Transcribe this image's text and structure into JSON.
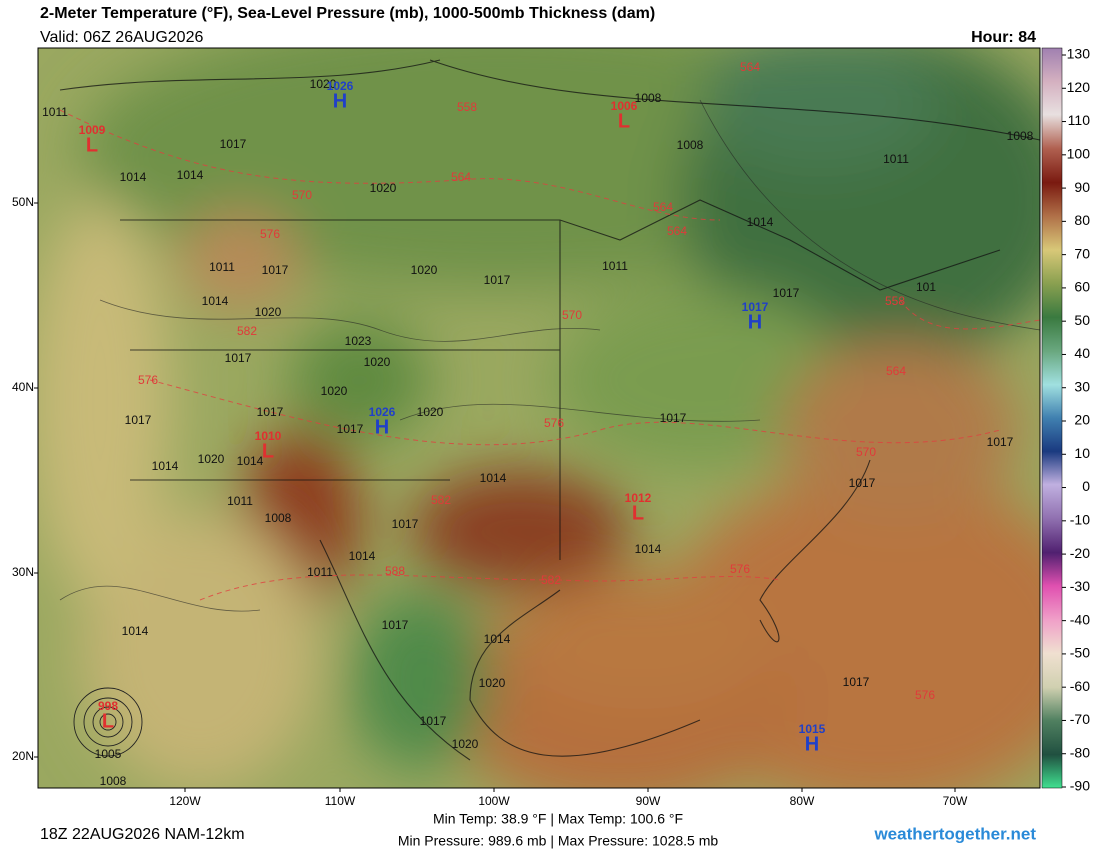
{
  "header": {
    "title": "2-Meter Temperature (°F), Sea-Level Pressure (mb), 1000-500mb Thickness (dam)",
    "valid": "Valid: 06Z 26AUG2026",
    "hour": "Hour: 84"
  },
  "map": {
    "lat_labels": [
      "50N",
      "40N",
      "30N",
      "20N"
    ],
    "lon_labels": [
      "120W",
      "110W",
      "100W",
      "90W",
      "80W",
      "70W"
    ],
    "isobar_labels": [
      1011,
      1017,
      1014,
      1014,
      1020,
      1008,
      1008,
      1011,
      1008,
      1014,
      1011,
      1017,
      1020,
      1011,
      1017,
      1014,
      1020,
      1023,
      1020,
      1017,
      1020,
      1017,
      1020,
      1017,
      1017,
      1014,
      1020,
      1014,
      1011,
      1008,
      1017,
      1014,
      1011,
      1014,
      1017,
      1014,
      1017,
      1017,
      1017,
      1014,
      1020,
      1017,
      1020,
      1014,
      1005,
      1008,
      1017,
      1017,
      101,
      1020
    ],
    "thickness_labels": [
      564,
      558,
      564,
      570,
      576,
      564,
      564,
      558,
      582,
      570,
      576,
      576,
      582,
      588,
      582,
      576,
      570,
      564,
      576
    ],
    "centers": [
      {
        "letter": "H",
        "value": "1026"
      },
      {
        "letter": "L",
        "value": "1009"
      },
      {
        "letter": "L",
        "value": "1006"
      },
      {
        "letter": "H",
        "value": "1017"
      },
      {
        "letter": "H",
        "value": "1026"
      },
      {
        "letter": "L",
        "value": "1010"
      },
      {
        "letter": "L",
        "value": "1012"
      },
      {
        "letter": "H",
        "value": "1015"
      },
      {
        "letter": "L",
        "value": "998"
      }
    ]
  },
  "colorbar": {
    "range": [
      -90,
      130
    ],
    "ticks": [
      130,
      120,
      110,
      100,
      90,
      80,
      70,
      60,
      50,
      40,
      30,
      20,
      10,
      0,
      -10,
      -20,
      -30,
      -40,
      -50,
      -60,
      -70,
      -80,
      -90
    ]
  },
  "footer": {
    "run": "18Z 22AUG2026 NAM-12km",
    "temps": "Min Temp:  38.9 °F | Max Temp: 100.6 °F",
    "pressures": "Min Pressure: 989.6 mb | Max Pressure: 1028.5 mb",
    "site": "weathertogether.net"
  }
}
